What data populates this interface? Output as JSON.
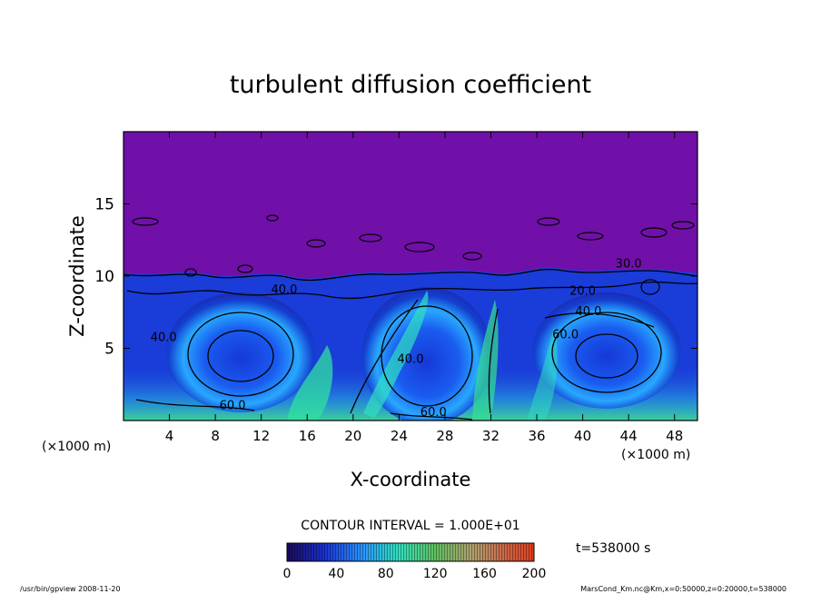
{
  "chart_data": {
    "type": "heatmap",
    "title": "turbulent diffusion coefficient",
    "xlabel": "X-coordinate",
    "ylabel": "Z-coordinate",
    "x_unit": "(×1000 m)",
    "y_unit": "(×1000 m)",
    "xlim": [
      0,
      50
    ],
    "ylim": [
      0,
      20
    ],
    "x_ticks": [
      4,
      8,
      12,
      16,
      20,
      24,
      28,
      32,
      36,
      40,
      44,
      48
    ],
    "y_ticks": [
      5,
      10,
      15
    ],
    "contour_interval_text": "CONTOUR INTERVAL = 1.000E+01",
    "time_text": "t=538000 s",
    "colorbar": {
      "min": 0,
      "max": 200,
      "ticks": [
        0,
        40,
        80,
        120,
        160,
        200
      ],
      "colors": [
        "#1a0a7a",
        "#1640e0",
        "#2aa0ff",
        "#30e0a0",
        "#c0c040",
        "#d04020"
      ]
    },
    "contour_labels": [
      {
        "text": "60.0",
        "x": 9.5,
        "y": 0.8
      },
      {
        "text": "60.0",
        "x": 27.0,
        "y": 0.3
      },
      {
        "text": "40.0",
        "x": 14.0,
        "y": 8.8
      },
      {
        "text": "40.0",
        "x": 25.0,
        "y": 4.0
      },
      {
        "text": "40.0",
        "x": 40.5,
        "y": 7.3
      },
      {
        "text": "20.0",
        "x": 40.0,
        "y": 8.7
      },
      {
        "text": "30.0",
        "x": 44.0,
        "y": 10.6
      },
      {
        "text": "60.0",
        "x": 38.5,
        "y": 5.7
      },
      {
        "text": "40.0",
        "x": 3.5,
        "y": 5.5
      }
    ],
    "field": {
      "upper_value": 0,
      "lower_regions": [
        {
          "name": "cell-1",
          "cx": 10,
          "cz": 3.5,
          "value": 30
        },
        {
          "name": "cell-2",
          "cx": 28,
          "cz": 4,
          "value": 40
        },
        {
          "name": "cell-3",
          "cx": 43,
          "cz": 3.5,
          "value": 35
        }
      ]
    }
  },
  "footer": {
    "left": "/usr/bin/gpview  2008-11-20",
    "right": "MarsCond_Km.nc@Km,x=0:50000,z=0:20000,t=538000"
  }
}
